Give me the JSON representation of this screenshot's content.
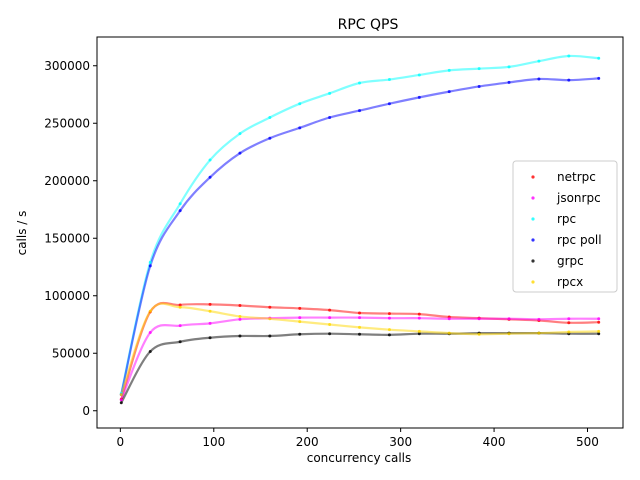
{
  "chart_data": {
    "type": "line",
    "title": "RPC QPS",
    "xlabel": "concurrency calls",
    "ylabel": "calls / s",
    "xlim": [
      -25,
      538
    ],
    "ylim": [
      -15000,
      325000
    ],
    "xticks": [
      0,
      100,
      200,
      300,
      400,
      500
    ],
    "yticks": [
      0,
      50000,
      100000,
      150000,
      200000,
      250000,
      300000
    ],
    "grid": false,
    "legend_position": "center-right",
    "x": [
      1,
      32,
      64,
      96,
      128,
      160,
      192,
      224,
      256,
      288,
      320,
      352,
      384,
      416,
      448,
      480,
      512
    ],
    "series": [
      {
        "name": "netrpc",
        "color": "#ff0000",
        "values": [
          10000,
          86000,
          92000,
          92500,
          91500,
          90000,
          89000,
          87500,
          85000,
          84500,
          84000,
          81500,
          80500,
          79500,
          78500,
          76500,
          77000
        ]
      },
      {
        "name": "jsonrpc",
        "color": "#ff00ff",
        "values": [
          9500,
          68000,
          74000,
          76000,
          79500,
          80500,
          81000,
          81000,
          81000,
          80500,
          80500,
          80000,
          80000,
          80000,
          79500,
          80000,
          80000
        ]
      },
      {
        "name": "rpc",
        "color": "#00ffff",
        "values": [
          15000,
          129000,
          180000,
          218000,
          241000,
          255000,
          267000,
          276000,
          285000,
          288000,
          292000,
          296000,
          297500,
          299000,
          304000,
          308500,
          306500
        ]
      },
      {
        "name": "rpc poll",
        "color": "#0000ff",
        "values": [
          14000,
          126000,
          174000,
          203000,
          224000,
          237000,
          246000,
          255000,
          261000,
          267000,
          272500,
          277500,
          282000,
          285500,
          288500,
          287500,
          289000
        ]
      },
      {
        "name": "grpc",
        "color": "#000000",
        "values": [
          7000,
          51500,
          60000,
          63500,
          65000,
          65000,
          66500,
          67000,
          66500,
          66000,
          67000,
          67000,
          67500,
          67500,
          67500,
          67000,
          67000
        ]
      },
      {
        "name": "rpcx",
        "color": "#ffd700",
        "values": [
          14000,
          86500,
          90000,
          86500,
          82000,
          80000,
          77500,
          75000,
          72500,
          70500,
          69000,
          67500,
          66500,
          67000,
          67500,
          68500,
          69000
        ]
      }
    ]
  }
}
